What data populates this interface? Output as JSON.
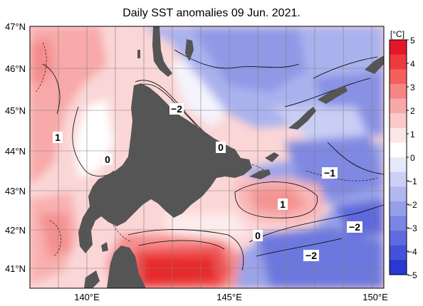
{
  "title": "Daily SST anomalies 09 Jun. 2021.",
  "unit": "[°C]",
  "lat_labels": [
    "47°N",
    "46°N",
    "45°N",
    "44°N",
    "43°N",
    "42°N",
    "41°N"
  ],
  "lon_labels": [
    "140°E",
    "145°E",
    "150°E"
  ],
  "colorbar": {
    "ticks": [
      "5",
      "4",
      "3",
      "2",
      "1",
      "0",
      "−1",
      "−2",
      "−3",
      "−4",
      "−5"
    ],
    "colors": [
      "#e5162a",
      "#ee3a3d",
      "#f46060",
      "#f78585",
      "#f9a8a8",
      "#fbc9c9",
      "#fde6e6",
      "#ffffff",
      "#e7e9fb",
      "#ccd0f5",
      "#b1b7ef",
      "#969eea",
      "#7b85e4",
      "#5f6bde",
      "#4452d8",
      "#2838d2"
    ]
  },
  "contour_labels": [
    "−2",
    "0",
    "1",
    "0",
    "−1",
    "1",
    "0",
    "−2",
    "−2"
  ],
  "colors": {
    "land": "#555555",
    "frame": "#000000",
    "grid": "#808080"
  }
}
